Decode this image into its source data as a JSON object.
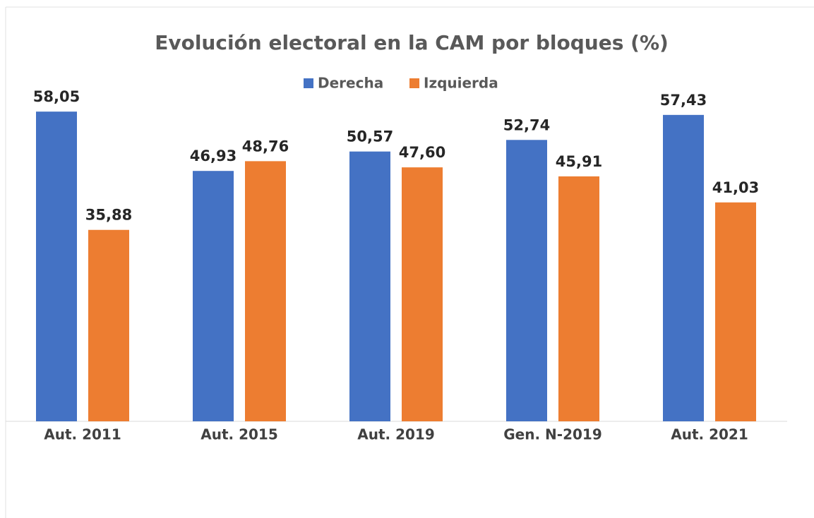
{
  "chart_data": {
    "type": "bar",
    "title": "Evolución electoral en la CAM por bloques (%)",
    "categories": [
      "Aut. 2011",
      "Aut. 2015",
      "Aut. 2019",
      "Gen. N-2019",
      "Aut. 2021"
    ],
    "series": [
      {
        "name": "Derecha",
        "color": "#4472c4",
        "values": [
          58.05,
          46.93,
          50.57,
          52.74,
          57.43
        ],
        "value_labels": [
          "58,05",
          "46,93",
          "50,57",
          "52,74",
          "57,43"
        ]
      },
      {
        "name": "Izquierda",
        "color": "#ed7d31",
        "values": [
          35.88,
          48.76,
          47.6,
          45.91,
          41.03
        ],
        "value_labels": [
          "35,88",
          "48,76",
          "47,60",
          "45,91",
          "41,03"
        ]
      }
    ],
    "legend": "top"
  }
}
